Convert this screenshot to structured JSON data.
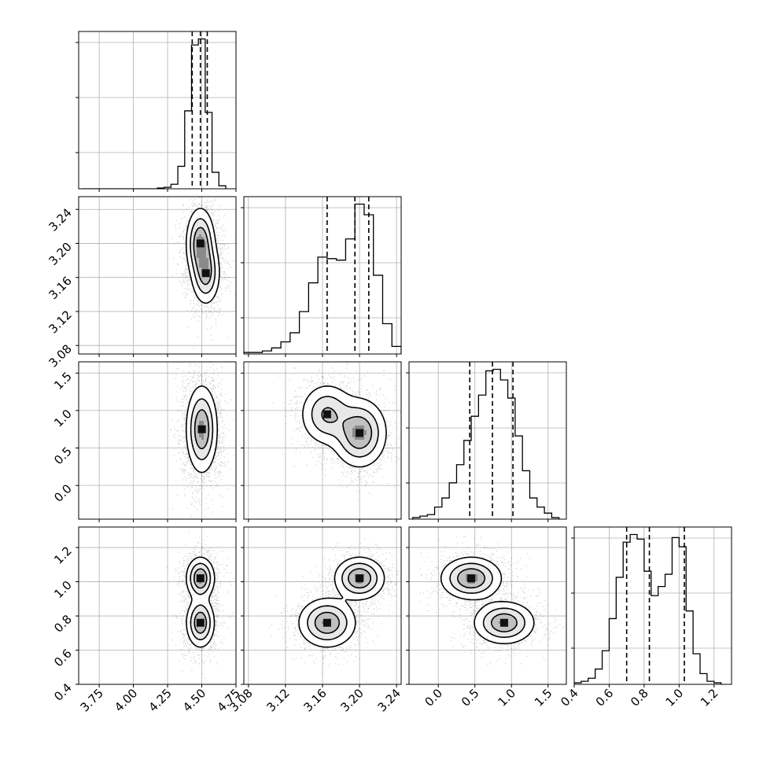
{
  "chart_data": {
    "type": "corner",
    "description_free": true,
    "grid": true,
    "panels": [
      {
        "kind": "histogram",
        "row": 0,
        "col": 0,
        "xlim": [
          3.6,
          4.75
        ],
        "bins_x": [
          3.65,
          3.7,
          3.75,
          3.8,
          3.85,
          3.9,
          3.95,
          4.0,
          4.05,
          4.1,
          4.15,
          4.2,
          4.25,
          4.3,
          4.35,
          4.4,
          4.45,
          4.5,
          4.55,
          4.6,
          4.65
        ],
        "bins_y": [
          0,
          0,
          0,
          0,
          0,
          0,
          0,
          0,
          0,
          0,
          0,
          0.5,
          1,
          3,
          15,
          52,
          96,
          100,
          51,
          11,
          2
        ],
        "quantiles": [
          4.43,
          4.49,
          4.54
        ]
      },
      {
        "kind": "histogram",
        "row": 1,
        "col": 1,
        "xlim": [
          3.075,
          3.245
        ],
        "bins_x": [
          3.08,
          3.09,
          3.1,
          3.11,
          3.12,
          3.13,
          3.14,
          3.15,
          3.16,
          3.17,
          3.18,
          3.19,
          3.2,
          3.21,
          3.22,
          3.23,
          3.24
        ],
        "bins_y": [
          1,
          1,
          2,
          4,
          8,
          14,
          28,
          47,
          64,
          63,
          62,
          76,
          99,
          92,
          52,
          20,
          5
        ],
        "quantiles": [
          3.165,
          3.195,
          3.21
        ]
      },
      {
        "kind": "histogram",
        "row": 2,
        "col": 2,
        "xlim": [
          -0.4,
          1.75
        ],
        "bins_x": [
          -0.3,
          -0.2,
          -0.1,
          0.0,
          0.1,
          0.2,
          0.3,
          0.4,
          0.5,
          0.6,
          0.7,
          0.8,
          0.9,
          1.0,
          1.1,
          1.2,
          1.3,
          1.4,
          1.5,
          1.6
        ],
        "bins_y": [
          1,
          2,
          3,
          8,
          14,
          24,
          36,
          52,
          68,
          82,
          98,
          99,
          92,
          80,
          55,
          32,
          14,
          8,
          4,
          1
        ],
        "quantiles": [
          0.43,
          0.74,
          1.02
        ]
      },
      {
        "kind": "histogram",
        "row": 3,
        "col": 3,
        "xlim": [
          0.4,
          1.3
        ],
        "bins_x": [
          0.42,
          0.46,
          0.5,
          0.54,
          0.58,
          0.62,
          0.66,
          0.7,
          0.74,
          0.78,
          0.82,
          0.86,
          0.9,
          0.94,
          0.98,
          1.02,
          1.06,
          1.1,
          1.14,
          1.18,
          1.22
        ],
        "bins_y": [
          1,
          2,
          4,
          10,
          22,
          43,
          70,
          93,
          98,
          95,
          74,
          58,
          64,
          72,
          96,
          90,
          48,
          20,
          7,
          2,
          1
        ],
        "quantiles": [
          0.7,
          0.83,
          1.03
        ]
      },
      {
        "kind": "density2d",
        "row": 1,
        "col": 0,
        "xlim": [
          3.6,
          4.75
        ],
        "ylim": [
          3.07,
          3.255
        ],
        "modes": [
          {
            "x": 4.49,
            "y": 3.2,
            "sx": 0.05,
            "sy": 0.02,
            "w": 1.0
          },
          {
            "x": 4.53,
            "y": 3.165,
            "sx": 0.05,
            "sy": 0.018,
            "w": 0.8
          }
        ]
      },
      {
        "kind": "density2d",
        "row": 2,
        "col": 0,
        "xlim": [
          3.6,
          4.75
        ],
        "ylim": [
          -0.45,
          1.65
        ],
        "modes": [
          {
            "x": 4.5,
            "y": 0.75,
            "sx": 0.055,
            "sy": 0.28,
            "w": 1.0
          }
        ]
      },
      {
        "kind": "density2d",
        "row": 2,
        "col": 1,
        "xlim": [
          3.075,
          3.245
        ],
        "ylim": [
          -0.45,
          1.65
        ],
        "modes": [
          {
            "x": 3.2,
            "y": 0.7,
            "sx": 0.014,
            "sy": 0.22,
            "w": 1.0
          },
          {
            "x": 3.165,
            "y": 0.95,
            "sx": 0.014,
            "sy": 0.2,
            "w": 0.7
          }
        ]
      },
      {
        "kind": "density2d",
        "row": 3,
        "col": 0,
        "xlim": [
          3.6,
          4.75
        ],
        "ylim": [
          0.4,
          1.32
        ],
        "modes": [
          {
            "x": 4.49,
            "y": 1.02,
            "sx": 0.05,
            "sy": 0.06,
            "w": 1.0
          },
          {
            "x": 4.49,
            "y": 0.76,
            "sx": 0.05,
            "sy": 0.07,
            "w": 0.95
          }
        ]
      },
      {
        "kind": "density2d",
        "row": 3,
        "col": 1,
        "xlim": [
          3.075,
          3.245
        ],
        "ylim": [
          0.4,
          1.32
        ],
        "modes": [
          {
            "x": 3.2,
            "y": 1.02,
            "sx": 0.013,
            "sy": 0.06,
            "w": 1.0
          },
          {
            "x": 3.165,
            "y": 0.76,
            "sx": 0.015,
            "sy": 0.07,
            "w": 0.95
          }
        ]
      },
      {
        "kind": "density2d",
        "row": 3,
        "col": 2,
        "xlim": [
          -0.4,
          1.75
        ],
        "ylim": [
          0.4,
          1.32
        ],
        "modes": [
          {
            "x": 0.45,
            "y": 1.02,
            "sx": 0.2,
            "sy": 0.06,
            "w": 1.0
          },
          {
            "x": 0.9,
            "y": 0.76,
            "sx": 0.2,
            "sy": 0.06,
            "w": 0.95
          }
        ]
      }
    ],
    "axes": {
      "x_ticks": [
        {
          "values": [
            3.75,
            4.0,
            4.25,
            4.5,
            4.75
          ],
          "labels": [
            "3.75",
            "4.00",
            "4.25",
            "4.50",
            "4.75"
          ]
        },
        {
          "values": [
            3.08,
            3.12,
            3.16,
            3.2,
            3.24
          ],
          "labels": [
            "3.08",
            "3.12",
            "3.16",
            "3.20",
            "3.24"
          ]
        },
        {
          "values": [
            0.0,
            0.5,
            1.0,
            1.5
          ],
          "labels": [
            "0.0",
            "0.5",
            "1.0",
            "1.5"
          ]
        },
        {
          "values": [
            0.4,
            0.6,
            0.8,
            1.0,
            1.2
          ],
          "labels": [
            "0.4",
            "0.6",
            "0.8",
            "1.0",
            "1.2"
          ]
        }
      ],
      "y_ticks": [
        null,
        {
          "values": [
            3.08,
            3.12,
            3.16,
            3.2,
            3.24
          ],
          "labels": [
            "3.08",
            "3.12",
            "3.16",
            "3.20",
            "3.24"
          ]
        },
        {
          "values": [
            0.0,
            0.5,
            1.0,
            1.5
          ],
          "labels": [
            "0.0",
            "0.5",
            "1.0",
            "1.5"
          ]
        },
        {
          "values": [
            0.4,
            0.6,
            0.8,
            1.0,
            1.2
          ],
          "labels": [
            "0.4",
            "0.6",
            "0.8",
            "1.0",
            "1.2"
          ]
        }
      ]
    }
  }
}
